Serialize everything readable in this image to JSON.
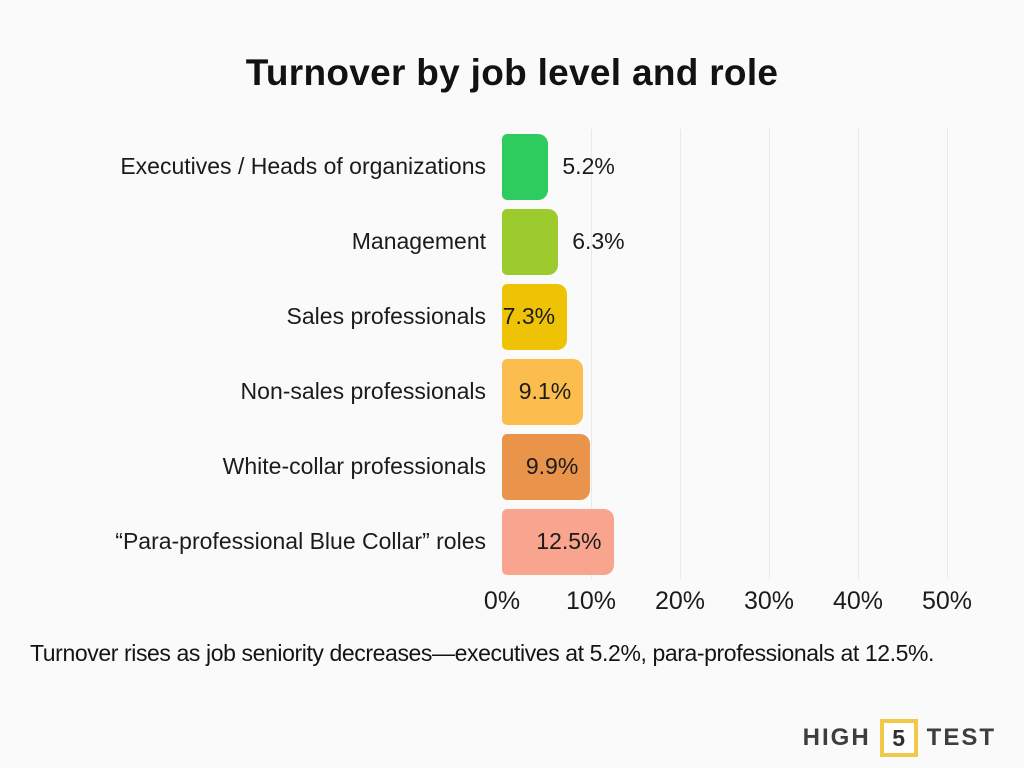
{
  "page": {
    "background": "#fafafa"
  },
  "title": "Turnover by job level and role",
  "caption": "Turnover rises as job seniority decreases—executives at 5.2%, para-professionals at 12.5%.",
  "chart_data": {
    "type": "bar",
    "orientation": "horizontal",
    "title": "Turnover by job level and role",
    "categories": [
      "Executives / Heads of organizations",
      "Management",
      "Sales professionals",
      "Non-sales professionals",
      "White-collar professionals",
      "“Para-professional Blue Collar” roles"
    ],
    "values": [
      5.2,
      6.3,
      7.3,
      9.1,
      9.9,
      12.5
    ],
    "value_labels": [
      "5.2%",
      "6.3%",
      "7.3%",
      "9.1%",
      "9.9%",
      "12.5%"
    ],
    "colors": [
      "#2ecc5e",
      "#9bcb2d",
      "#eec306",
      "#fbbd4e",
      "#e9944a",
      "#f9a48e"
    ],
    "label_placement": [
      "outside",
      "outside",
      "inside",
      "inside",
      "inside",
      "inside"
    ],
    "x_ticks": [
      "0%",
      "10%",
      "20%",
      "30%",
      "40%",
      "50%"
    ],
    "xlim": [
      0,
      50
    ],
    "xlabel": "",
    "ylabel": "",
    "grid": "vertical-light",
    "legend": "none",
    "gridline_color": "#e9e9e9"
  },
  "logo": {
    "word_left": "HIGH",
    "badge_number": "5",
    "word_right": "TEST",
    "badge_border_color": "#f2c84b"
  }
}
